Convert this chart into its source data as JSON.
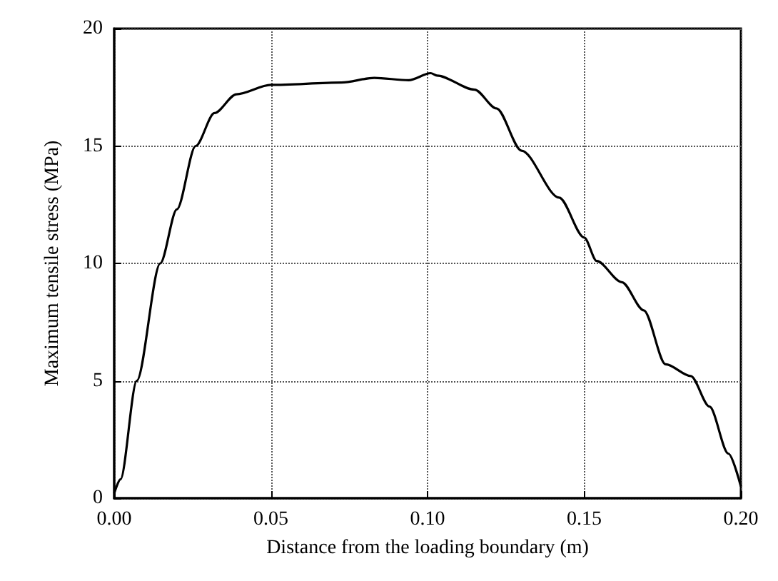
{
  "chart_data": {
    "type": "line",
    "xlabel": "Distance from the loading boundary (m)",
    "ylabel": "Maximum tensile stress (MPa)",
    "x": [
      0,
      0.002,
      0.0072,
      0.0147,
      0.02,
      0.026,
      0.032,
      0.039,
      0.05,
      0.0725,
      0.083,
      0.094,
      0.101,
      0.103,
      0.115,
      0.122,
      0.13,
      0.142,
      0.15,
      0.154,
      0.162,
      0.169,
      0.176,
      0.184,
      0.19,
      0.196,
      0.2
    ],
    "series": [
      {
        "color": "#000000",
        "values": [
          0.2,
          0.8,
          5.0,
          10.0,
          12.3,
          15.0,
          16.4,
          17.2,
          17.6,
          17.7,
          17.9,
          17.8,
          18.1,
          18.0,
          17.4,
          16.6,
          14.8,
          12.8,
          11.1,
          10.1,
          9.2,
          8.0,
          5.7,
          5.2,
          3.9,
          1.9,
          0.5
        ]
      }
    ],
    "xlim": [
      0,
      0.2
    ],
    "xticks": [
      {
        "value": 0,
        "label": "0.00"
      },
      {
        "value": 0.05,
        "label": "0.05"
      },
      {
        "value": 0.1,
        "label": "0.10"
      },
      {
        "value": 0.15,
        "label": "0.15"
      },
      {
        "value": 0.2,
        "label": "0.20"
      }
    ],
    "ylim": [
      0,
      20
    ],
    "yticks": [
      0,
      5,
      10,
      15,
      20
    ],
    "grid": true,
    "marker": "none",
    "line_style": "solid"
  }
}
